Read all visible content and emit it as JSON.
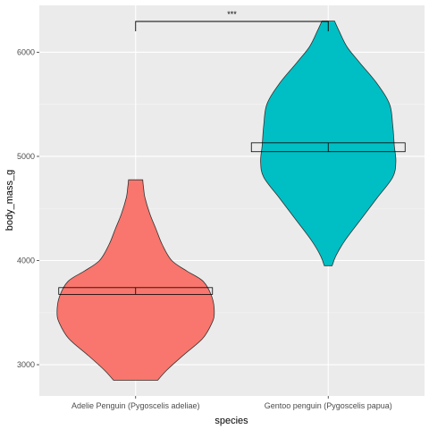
{
  "chart_data": {
    "type": "violin",
    "xlabel": "species",
    "ylabel": "body_mass_g",
    "categories": [
      "Adelie Penguin (Pygoscelis adeliae)",
      "Gentoo penguin (Pygoscelis papua)"
    ],
    "ylim": [
      2700,
      6450
    ],
    "yticks": [
      3000,
      4000,
      5000,
      6000
    ],
    "ytick_labels": [
      "3000",
      "4000",
      "5000",
      "6000"
    ],
    "grid": true,
    "legend": "none",
    "series": [
      {
        "category": "Adelie Penguin (Pygoscelis adeliae)",
        "color": "#F8766D",
        "min": 2850,
        "max": 4775,
        "mean": 3700,
        "ci_low": 3675,
        "ci_high": 3740,
        "density": [
          [
            2850,
            0.28
          ],
          [
            2950,
            0.4
          ],
          [
            3100,
            0.62
          ],
          [
            3250,
            0.85
          ],
          [
            3400,
            0.97
          ],
          [
            3500,
            1.0
          ],
          [
            3650,
            0.97
          ],
          [
            3800,
            0.86
          ],
          [
            3900,
            0.65
          ],
          [
            4000,
            0.46
          ],
          [
            4150,
            0.34
          ],
          [
            4300,
            0.26
          ],
          [
            4450,
            0.18
          ],
          [
            4600,
            0.12
          ],
          [
            4700,
            0.1
          ],
          [
            4775,
            0.09
          ]
        ]
      },
      {
        "category": "Gentoo penguin (Pygoscelis papua)",
        "color": "#00BFC4",
        "min": 3950,
        "max": 6300,
        "mean": 5085,
        "ci_low": 5045,
        "ci_high": 5130,
        "density": [
          [
            3950,
            0.05
          ],
          [
            4050,
            0.1
          ],
          [
            4200,
            0.22
          ],
          [
            4400,
            0.42
          ],
          [
            4600,
            0.62
          ],
          [
            4800,
            0.82
          ],
          [
            4950,
            0.86
          ],
          [
            5100,
            0.84
          ],
          [
            5300,
            0.82
          ],
          [
            5500,
            0.78
          ],
          [
            5700,
            0.62
          ],
          [
            5900,
            0.4
          ],
          [
            6050,
            0.24
          ],
          [
            6200,
            0.14
          ],
          [
            6300,
            0.08
          ]
        ]
      }
    ],
    "annotation": {
      "text": "***",
      "from": "Adelie Penguin (Pygoscelis adeliae)",
      "to": "Gentoo penguin (Pygoscelis papua)",
      "y": 6450,
      "drop_to": 6370
    },
    "colors": {
      "panel_bg": "#EBEBEB",
      "grid_major": "#FFFFFF",
      "outline": "#333333"
    }
  }
}
